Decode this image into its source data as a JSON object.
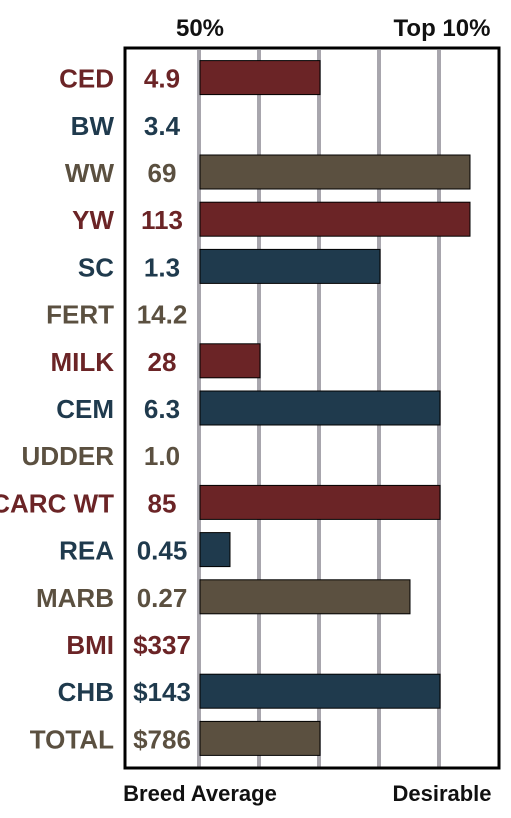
{
  "chart_data": {
    "type": "bar",
    "orientation": "horizontal",
    "top_labels": [
      "50%",
      "Top 10%"
    ],
    "bottom_labels": [
      "Breed Average",
      "Desirable"
    ],
    "scale_max": 9,
    "grid": true,
    "colors": {
      "red": "#6b2426",
      "navy": "#1f3a4d",
      "brown": "#5b5040",
      "grid": "#a8a6ad",
      "frame": "#000000"
    },
    "rows": [
      {
        "trait": "CED",
        "value": "4.9",
        "bar": 4,
        "color": "red"
      },
      {
        "trait": "BW",
        "value": "3.4",
        "bar": 0,
        "color": "navy"
      },
      {
        "trait": "WW",
        "value": "69",
        "bar": 9,
        "color": "brown"
      },
      {
        "trait": "YW",
        "value": "113",
        "bar": 9,
        "color": "red"
      },
      {
        "trait": "SC",
        "value": "1.3",
        "bar": 6,
        "color": "navy"
      },
      {
        "trait": "FERT",
        "value": "14.2",
        "bar": 0,
        "color": "brown"
      },
      {
        "trait": "MILK",
        "value": "28",
        "bar": 2,
        "color": "red"
      },
      {
        "trait": "CEM",
        "value": "6.3",
        "bar": 8,
        "color": "navy"
      },
      {
        "trait": "UDDER",
        "value": "1.0",
        "bar": 0,
        "color": "brown"
      },
      {
        "trait": "CARC WT",
        "value": "85",
        "bar": 8,
        "color": "red"
      },
      {
        "trait": "REA",
        "value": "0.45",
        "bar": 1,
        "color": "navy"
      },
      {
        "trait": "MARB",
        "value": "0.27",
        "bar": 7,
        "color": "brown"
      },
      {
        "trait": "BMI",
        "value": "$337",
        "bar": 0,
        "color": "red"
      },
      {
        "trait": "CHB",
        "value": "$143",
        "bar": 8,
        "color": "navy"
      },
      {
        "trait": "TOTAL",
        "value": "$786",
        "bar": 4,
        "color": "brown"
      }
    ]
  }
}
